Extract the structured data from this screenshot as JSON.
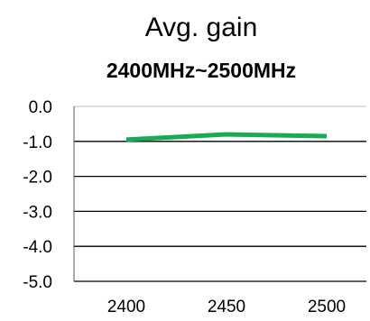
{
  "chart_data": {
    "type": "line",
    "title": "Avg. gain",
    "subtitle": "2400MHz~2500MHz",
    "xlabel": "",
    "ylabel": "",
    "x": [
      2400,
      2450,
      2500
    ],
    "x_tick_labels": [
      "2400",
      "2450",
      "2500"
    ],
    "y_ticks": [
      0.0,
      -1.0,
      -2.0,
      -3.0,
      -4.0,
      -5.0
    ],
    "y_tick_labels": [
      "0.0",
      "-1.0",
      "-2.0",
      "-3.0",
      "-4.0",
      "-5.0"
    ],
    "ylim": [
      -5.0,
      0.0
    ],
    "grid": "horizontal",
    "legend": "none",
    "series": [
      {
        "values": [
          -0.95,
          -0.8,
          -0.85
        ],
        "color": "#1aaa55"
      }
    ]
  }
}
